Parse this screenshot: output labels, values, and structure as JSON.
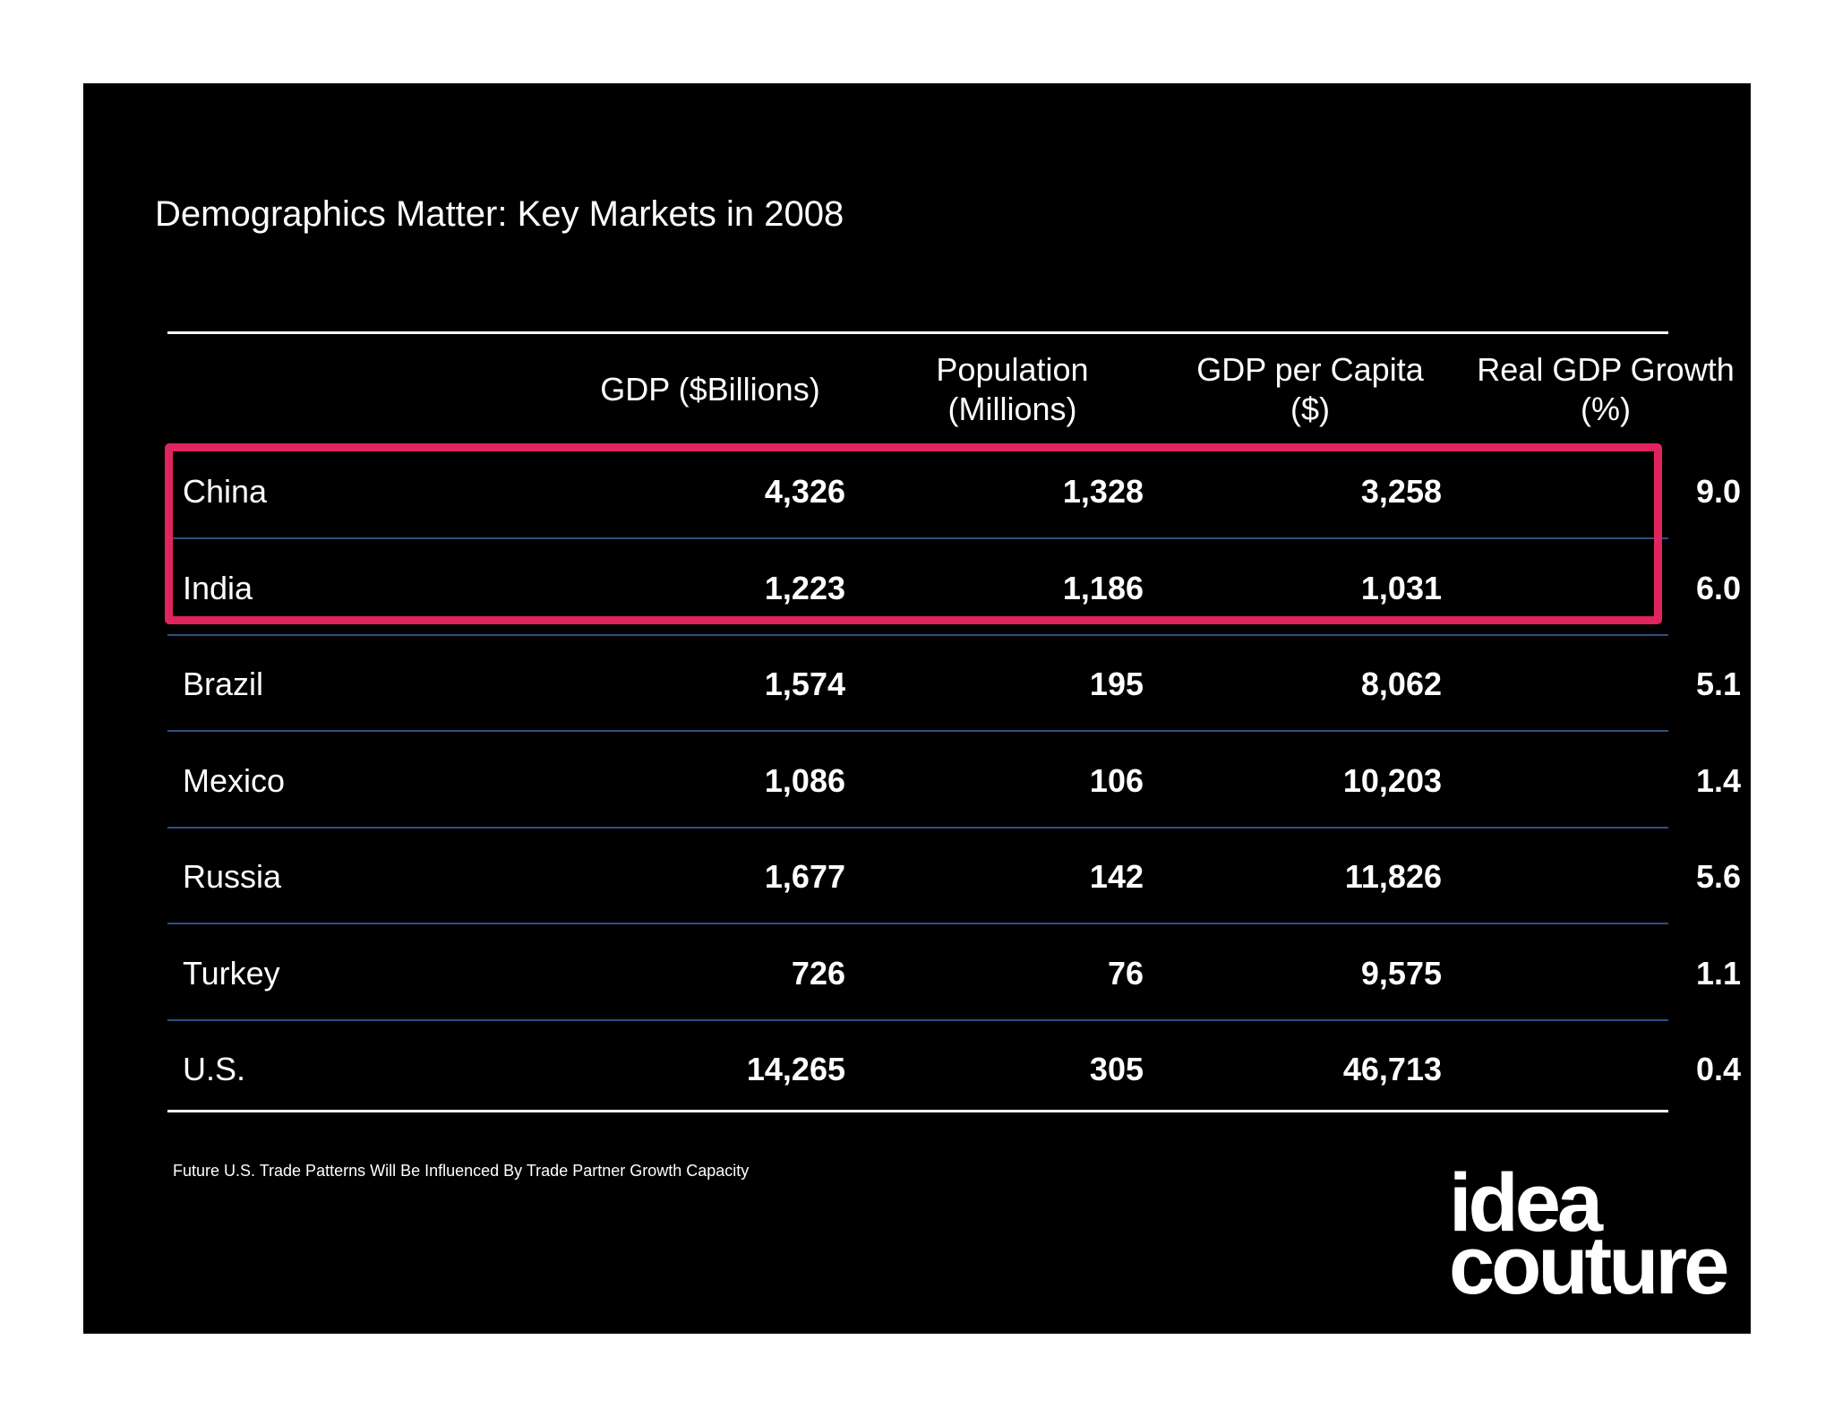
{
  "title": "Demographics Matter: Key Markets in 2008",
  "headers": [
    {
      "line1": "GDP ($Billions)",
      "line2": ""
    },
    {
      "line1": "Population",
      "line2": "(Millions)"
    },
    {
      "line1": "GDP per Capita",
      "line2": "($)"
    },
    {
      "line1": "Real GDP Growth",
      "line2": "(%)"
    }
  ],
  "rows": [
    {
      "country": "China",
      "gdp": "4,326",
      "population": "1,328",
      "gdp_per_capita": "3,258",
      "growth": "9.0",
      "highlighted": true
    },
    {
      "country": "India",
      "gdp": "1,223",
      "population": "1,186",
      "gdp_per_capita": "1,031",
      "growth": "6.0",
      "highlighted": true
    },
    {
      "country": "Brazil",
      "gdp": "1,574",
      "population": "195",
      "gdp_per_capita": "8,062",
      "growth": "5.1",
      "highlighted": false
    },
    {
      "country": "Mexico",
      "gdp": "1,086",
      "population": "106",
      "gdp_per_capita": "10,203",
      "growth": "1.4",
      "highlighted": false
    },
    {
      "country": "Russia",
      "gdp": "1,677",
      "population": "142",
      "gdp_per_capita": "11,826",
      "growth": "5.6",
      "highlighted": false
    },
    {
      "country": "Turkey",
      "gdp": "726",
      "population": "76",
      "gdp_per_capita": "9,575",
      "growth": "1.1",
      "highlighted": false
    },
    {
      "country": "U.S.",
      "gdp": "14,265",
      "population": "305",
      "gdp_per_capita": "46,713",
      "growth": "0.4",
      "highlighted": false
    }
  ],
  "footnote": "Future U.S. Trade Patterns Will Be Influenced By Trade Partner Growth Capacity",
  "logo": {
    "line1": "idea",
    "line2": "couture"
  },
  "colors": {
    "background": "#000000",
    "text": "#ffffff",
    "highlight": "#e0245e",
    "row_divider": "#2f4f80"
  }
}
